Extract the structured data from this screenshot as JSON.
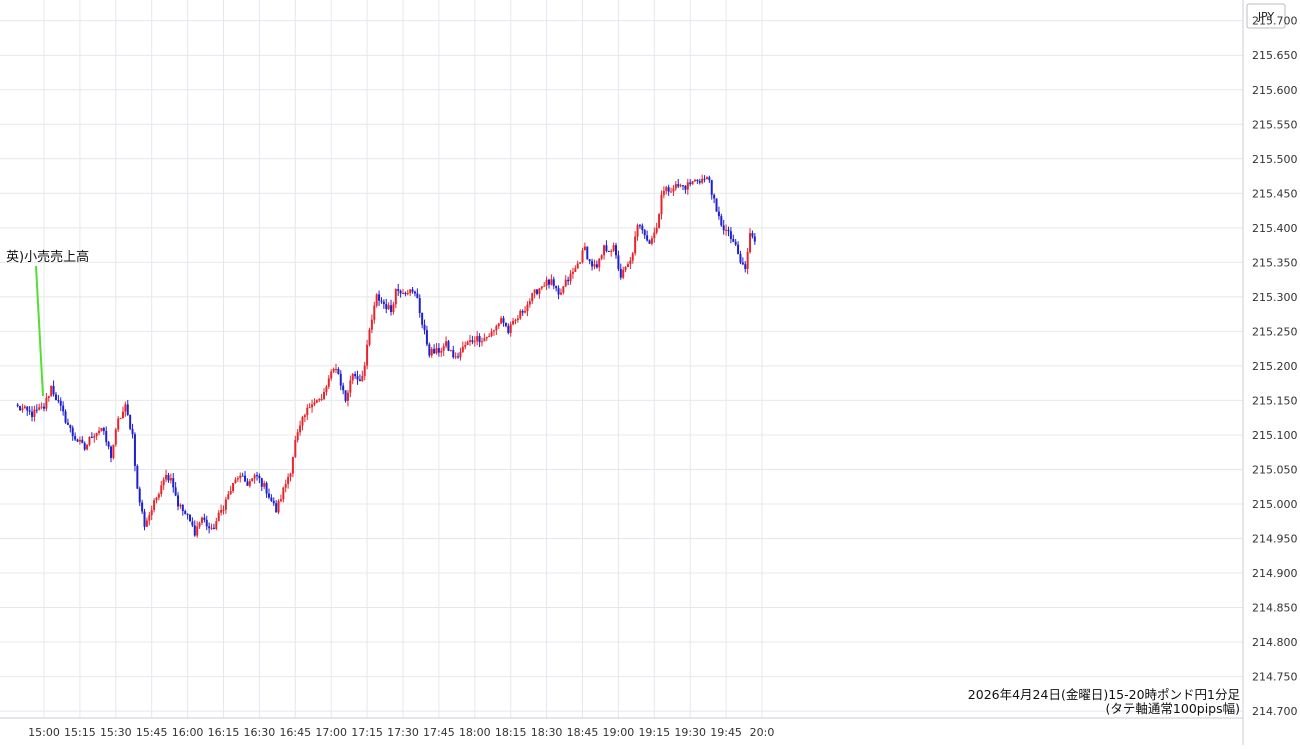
{
  "chart_data": {
    "type": "candlestick",
    "currency_label": "JPY",
    "caption_line1": "2026年4月24日(金曜日)15-20時ポンド円1分足",
    "caption_line2": "(タテ軸通常100pips幅)",
    "annotation": {
      "text": "英)小売売上高",
      "time": "15:00"
    },
    "y_ticks": [
      "215.700",
      "215.650",
      "215.600",
      "215.550",
      "215.500",
      "215.450",
      "215.400",
      "215.350",
      "215.300",
      "215.250",
      "215.200",
      "215.150",
      "215.100",
      "215.050",
      "215.000",
      "214.950",
      "214.900",
      "214.850",
      "214.800",
      "214.750",
      "214.700"
    ],
    "x_ticks": [
      "15:00",
      "15:15",
      "15:30",
      "15:45",
      "16:00",
      "16:15",
      "16:30",
      "16:45",
      "17:00",
      "17:15",
      "17:30",
      "17:45",
      "18:00",
      "18:15",
      "18:30",
      "18:45",
      "19:00",
      "19:15",
      "19:30",
      "19:45",
      "20:0"
    ],
    "ylim": [
      214.69,
      215.73
    ],
    "grid": true,
    "colors": {
      "up": "#e8242b",
      "down": "#1f1fd0",
      "grid": "#e4e8ee",
      "annotation_line": "#55dd33"
    },
    "close_path": [
      [
        "14:49",
        215.14
      ],
      [
        "14:55",
        215.13
      ],
      [
        "15:00",
        215.14
      ],
      [
        "15:03",
        215.17
      ],
      [
        "15:08",
        215.13
      ],
      [
        "15:12",
        215.1
      ],
      [
        "15:17",
        215.08
      ],
      [
        "15:20",
        215.1
      ],
      [
        "15:24",
        215.11
      ],
      [
        "15:28",
        215.07
      ],
      [
        "15:31",
        215.12
      ],
      [
        "15:34",
        215.14
      ],
      [
        "15:37",
        215.1
      ],
      [
        "15:39",
        215.02
      ],
      [
        "15:42",
        214.97
      ],
      [
        "15:46",
        215.0
      ],
      [
        "15:50",
        215.04
      ],
      [
        "15:53",
        215.04
      ],
      [
        "15:56",
        215.0
      ],
      [
        "16:00",
        214.98
      ],
      [
        "16:03",
        214.96
      ],
      [
        "16:06",
        214.98
      ],
      [
        "16:10",
        214.96
      ],
      [
        "16:14",
        214.99
      ],
      [
        "16:18",
        215.02
      ],
      [
        "16:21",
        215.04
      ],
      [
        "16:25",
        215.03
      ],
      [
        "16:29",
        215.04
      ],
      [
        "16:33",
        215.02
      ],
      [
        "16:37",
        214.99
      ],
      [
        "16:40",
        215.02
      ],
      [
        "16:43",
        215.05
      ],
      [
        "16:45",
        215.09
      ],
      [
        "16:48",
        215.12
      ],
      [
        "16:52",
        215.15
      ],
      [
        "16:56",
        215.15
      ],
      [
        "16:59",
        215.18
      ],
      [
        "17:02",
        215.2
      ],
      [
        "17:06",
        215.15
      ],
      [
        "17:09",
        215.19
      ],
      [
        "17:12",
        215.18
      ],
      [
        "17:14",
        215.2
      ],
      [
        "17:16",
        215.25
      ],
      [
        "17:19",
        215.3
      ],
      [
        "17:22",
        215.29
      ],
      [
        "17:25",
        215.28
      ],
      [
        "17:27",
        215.31
      ],
      [
        "17:32",
        215.31
      ],
      [
        "17:36",
        215.3
      ],
      [
        "17:38",
        215.26
      ],
      [
        "17:41",
        215.22
      ],
      [
        "17:44",
        215.22
      ],
      [
        "17:48",
        215.23
      ],
      [
        "17:52",
        215.21
      ],
      [
        "17:56",
        215.23
      ],
      [
        "18:00",
        215.24
      ],
      [
        "18:04",
        215.24
      ],
      [
        "18:08",
        215.25
      ],
      [
        "18:11",
        215.27
      ],
      [
        "18:14",
        215.25
      ],
      [
        "18:18",
        215.27
      ],
      [
        "18:22",
        215.29
      ],
      [
        "18:26",
        215.31
      ],
      [
        "18:29",
        215.32
      ],
      [
        "18:32",
        215.32
      ],
      [
        "18:35",
        215.3
      ],
      [
        "18:38",
        215.32
      ],
      [
        "18:42",
        215.34
      ],
      [
        "18:46",
        215.37
      ],
      [
        "18:48",
        215.35
      ],
      [
        "18:51",
        215.34
      ],
      [
        "18:54",
        215.37
      ],
      [
        "18:58",
        215.37
      ],
      [
        "19:01",
        215.33
      ],
      [
        "19:05",
        215.35
      ],
      [
        "19:08",
        215.4
      ],
      [
        "19:10",
        215.4
      ],
      [
        "19:13",
        215.38
      ],
      [
        "19:16",
        215.4
      ],
      [
        "19:18",
        215.45
      ],
      [
        "19:23",
        215.46
      ],
      [
        "19:28",
        215.46
      ],
      [
        "19:33",
        215.47
      ],
      [
        "19:38",
        215.47
      ],
      [
        "19:41",
        215.42
      ],
      [
        "19:44",
        215.4
      ],
      [
        "19:48",
        215.38
      ],
      [
        "19:51",
        215.35
      ],
      [
        "19:53",
        215.34
      ],
      [
        "19:55",
        215.39
      ],
      [
        "19:57",
        215.38
      ]
    ]
  }
}
